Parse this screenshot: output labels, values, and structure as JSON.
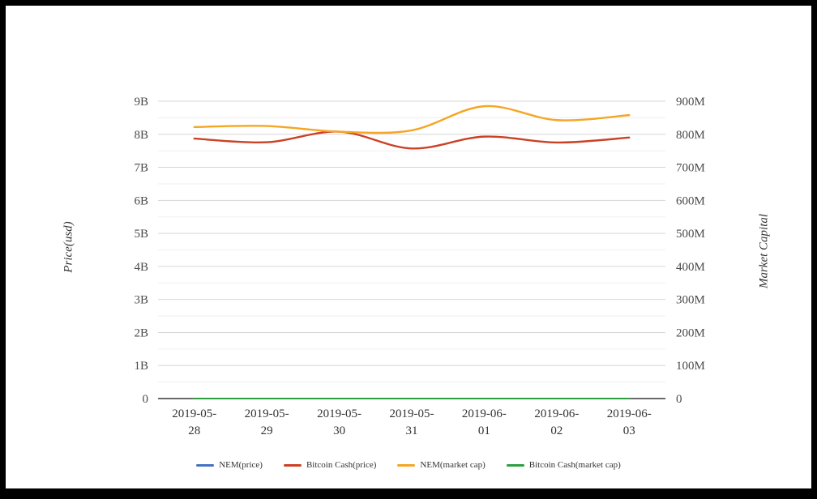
{
  "page": {
    "background": "#ffffff",
    "frame_color": "#000000"
  },
  "chart_data": {
    "type": "line",
    "x": [
      "2019-05-28",
      "2019-05-29",
      "2019-05-30",
      "2019-05-31",
      "2019-06-01",
      "2019-06-02",
      "2019-06-03"
    ],
    "series": [
      {
        "name": "NEM(price)",
        "color": "#4472c4",
        "axis": "left",
        "values": [
          0,
          0,
          0,
          0,
          0,
          0,
          0
        ]
      },
      {
        "name": "Bitcoin Cash(price)",
        "color": "#cc4125",
        "axis": "left",
        "values": [
          7.87,
          7.76,
          8.08,
          7.57,
          7.93,
          7.75,
          7.9
        ]
      },
      {
        "name": "NEM(market cap)",
        "color": "#f5a623",
        "axis": "right",
        "values": [
          822,
          825,
          808,
          812,
          885,
          843,
          858
        ]
      },
      {
        "name": "Bitcoin Cash(market cap)",
        "color": "#2e9e41",
        "axis": "right",
        "values": [
          0,
          0,
          0,
          0,
          0,
          0,
          0
        ]
      }
    ],
    "left_axis": {
      "title": "Price(usd)",
      "unit": "billions USD",
      "max": 9,
      "ticks": [
        "0",
        "1B",
        "2B",
        "3B",
        "4B",
        "5B",
        "6B",
        "7B",
        "8B",
        "9B"
      ]
    },
    "right_axis": {
      "title": "Market Capital",
      "unit": "millions USD",
      "max": 900,
      "ticks": [
        "0",
        "100M",
        "200M",
        "300M",
        "400M",
        "500M",
        "600M",
        "700M",
        "800M",
        "900M"
      ]
    },
    "grid": true,
    "legend_position": "bottom",
    "colors": {
      "major_gridline": "#d6d6d6",
      "minor_gridline": "#efefef",
      "zero_axis_line": "#111111",
      "tick_text": "#4a4a4a",
      "date_text": "#333333"
    }
  }
}
